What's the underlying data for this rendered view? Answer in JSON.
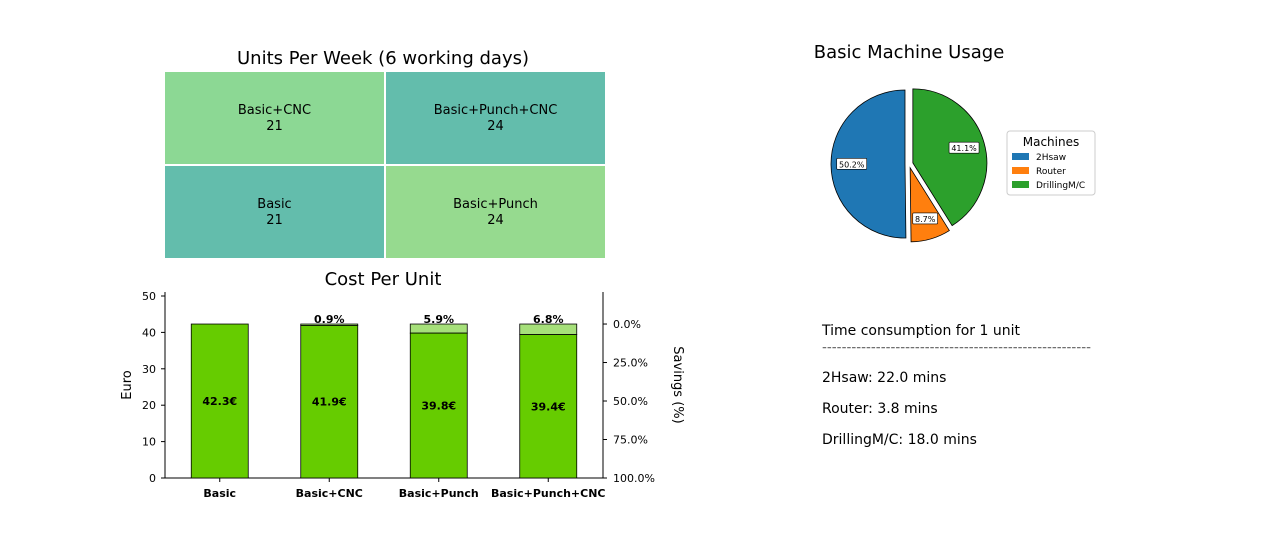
{
  "chart_data": [
    {
      "type": "heatmap",
      "title": "Units Per Week (6 working days)",
      "cells": [
        {
          "label": "Basic+CNC",
          "value": "21",
          "color": "#8cd894"
        },
        {
          "label": "Basic+Punch+CNC",
          "value": "24",
          "color": "#63bdac"
        },
        {
          "label": "Basic",
          "value": "21",
          "color": "#63bdac"
        },
        {
          "label": "Basic+Punch",
          "value": "24",
          "color": "#96da8f"
        }
      ]
    },
    {
      "type": "bar",
      "title": "Cost Per Unit",
      "categories": [
        "Basic",
        "Basic+CNC",
        "Basic+Punch",
        "Basic+Punch+CNC"
      ],
      "series": [
        {
          "values": [
            42.3,
            41.9,
            39.8,
            39.4
          ],
          "color": "#66cc00",
          "labels": [
            "42.3€",
            "41.9€",
            "39.8€",
            "39.4€"
          ]
        }
      ],
      "savings_labels": [
        "",
        "0.9%",
        "5.9%",
        "6.8%"
      ],
      "savings_color": "#a6e07a",
      "baseline": 42.3,
      "ylabel": "Euro",
      "ylim": [
        0,
        50
      ],
      "yticks": [
        "0",
        "10",
        "20",
        "30",
        "40",
        "50"
      ],
      "y2label": "Savings (%)",
      "y2ticks": [
        "0.0%",
        "25.0%",
        "50.0%",
        "75.0%",
        "100.0%"
      ]
    },
    {
      "type": "pie",
      "title": "Basic Machine Usage",
      "slices": [
        {
          "label": "2Hsaw",
          "value": 50.2,
          "pct_label": "50.2%",
          "color": "#1f77b4"
        },
        {
          "label": "Router",
          "value": 8.7,
          "pct_label": "8.7%",
          "color": "#ff7f0e"
        },
        {
          "label": "DrillingM/C",
          "value": 41.1,
          "pct_label": "41.1%",
          "color": "#2ca02c"
        }
      ],
      "legend_title": "Machines",
      "legend_position": "right"
    }
  ],
  "time_panel": {
    "heading": "Time consumption for 1 unit",
    "divider": "-------------------------------------------------------",
    "lines": [
      "2Hsaw: 22.0 mins",
      "Router: 3.8 mins",
      "DrillingM/C: 18.0 mins"
    ]
  }
}
